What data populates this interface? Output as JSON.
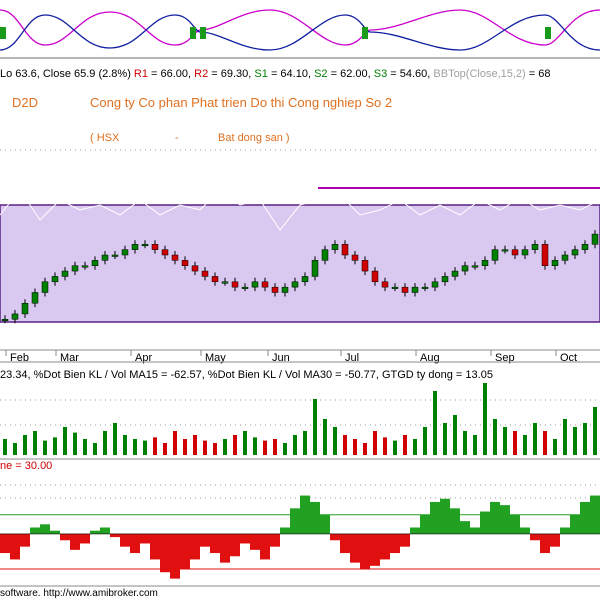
{
  "header": {
    "stats": "Lo 63.6, Close 65.9 (2.8%) ",
    "levels": [
      {
        "name": "R1",
        "text": " = 66.00, ",
        "color": "#d00000"
      },
      {
        "name": "R2",
        "text": " = 69.30, ",
        "color": "#d00000"
      },
      {
        "name": "S1",
        "text": " = 64.10, ",
        "color": "#008000"
      },
      {
        "name": "S2",
        "text": " = 62.00, ",
        "color": "#008000"
      },
      {
        "name": "S3",
        "text": " = 54.60, ",
        "color": "#008000"
      },
      {
        "name": "BBTop(Close,15,2)",
        "text": " = 68",
        "color": "#a0a0a0"
      }
    ]
  },
  "symbol": "D2D",
  "company": "Cong ty Co phan Phat trien Do thi Cong nghiep So 2",
  "exchange": "( HSX",
  "separator": "-",
  "sector": "Bat dong san )",
  "footer": "software. http://www.amibroker.com",
  "chart_data": [
    {
      "type": "candlestick",
      "months": [
        "Feb",
        "Mar",
        "Apr",
        "May",
        "Jun",
        "Jul",
        "Aug",
        "Sep",
        "Oct"
      ],
      "up_color": "#008000",
      "down_color": "#d00000",
      "ylim": [
        48,
        76
      ],
      "values": [
        50,
        51,
        53,
        55,
        57,
        58,
        59,
        60,
        60,
        61,
        62,
        62,
        63,
        64,
        64,
        63,
        62,
        61,
        60,
        59,
        58,
        57,
        57,
        56,
        56,
        57,
        56,
        55,
        56,
        57,
        58,
        61,
        63,
        64,
        62,
        61,
        59,
        57,
        56,
        56,
        55,
        56,
        56,
        57,
        58,
        59,
        60,
        60,
        61,
        63,
        63,
        62,
        63,
        64,
        60,
        61,
        62,
        63,
        64,
        65.9
      ]
    },
    {
      "type": "bar",
      "title": "23.34, %Dot Bien KL / Vol MA15 = -62.57, %Dot Bien KL / Vol MA30 = -50.77, GTGD ty dong = 13.05",
      "ylim": [
        0,
        100
      ],
      "values": [
        20,
        15,
        25,
        30,
        18,
        22,
        35,
        28,
        20,
        15,
        30,
        40,
        25,
        20,
        18,
        22,
        15,
        30,
        20,
        25,
        18,
        15,
        20,
        25,
        30,
        22,
        18,
        20,
        15,
        25,
        30,
        70,
        45,
        35,
        25,
        20,
        15,
        30,
        22,
        18,
        25,
        20,
        35,
        80,
        40,
        50,
        30,
        25,
        90,
        45,
        35,
        30,
        25,
        40,
        30,
        20,
        45,
        35,
        40,
        60
      ]
    },
    {
      "type": "area",
      "title": "ne = 30.00",
      "ylim": [
        -80,
        100
      ],
      "levels": [
        30,
        -55
      ],
      "pos_color": "#22a022",
      "neg_color": "#e01010",
      "values": [
        -30,
        -40,
        -20,
        10,
        15,
        5,
        -10,
        -25,
        -15,
        5,
        10,
        -5,
        -20,
        -30,
        -15,
        -40,
        -60,
        -70,
        -55,
        -40,
        -20,
        -30,
        -45,
        -35,
        -15,
        -25,
        -40,
        -20,
        10,
        40,
        60,
        50,
        30,
        -10,
        -30,
        -45,
        -55,
        -50,
        -40,
        -30,
        -20,
        10,
        30,
        50,
        55,
        40,
        20,
        10,
        35,
        50,
        45,
        30,
        10,
        -10,
        -30,
        -20,
        10,
        30,
        50,
        60
      ]
    }
  ]
}
